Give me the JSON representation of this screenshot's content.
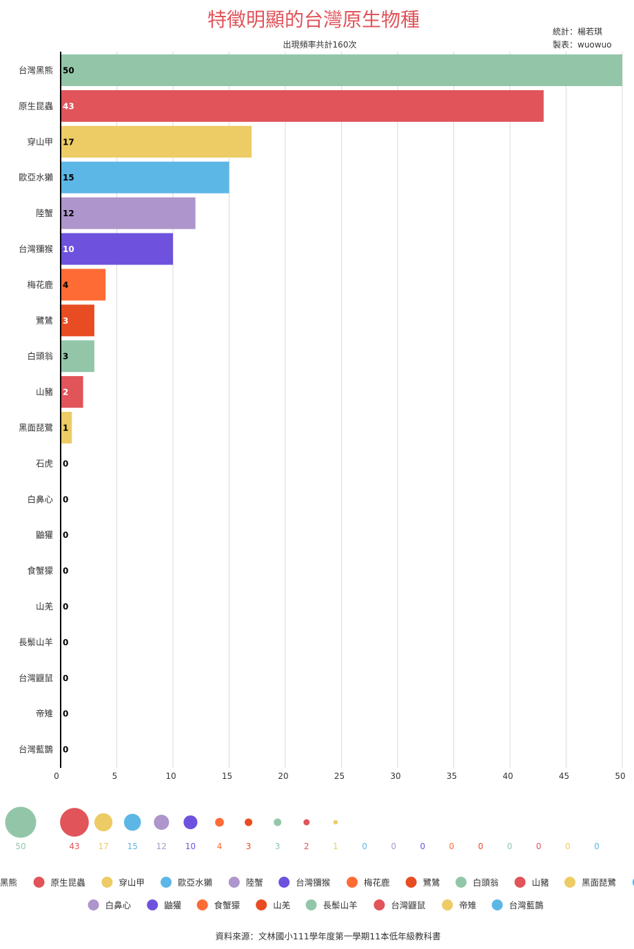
{
  "chart_data": {
    "type": "bar",
    "orientation": "horizontal",
    "title": "特徵明顯的台灣原生物種",
    "subtitle": "出現頻率共計160次",
    "credit_stats": "統計：楊若琪",
    "credit_maker": "製表：wuowuo",
    "source": "資料來源：文林國小111學年度第一學期11本低年級教科書",
    "categories": [
      "台灣黑熊",
      "原生昆蟲",
      "穿山甲",
      "歐亞水獺",
      "陸蟹",
      "台灣獼猴",
      "梅花鹿",
      "鷺鷥",
      "白頭翁",
      "山豬",
      "黑面琵鷺",
      "石虎",
      "白鼻心",
      "鼬獾",
      "食蟹獴",
      "山羌",
      "長鬃山羊",
      "台灣鼴鼠",
      "帝雉",
      "台灣藍鵲"
    ],
    "values": [
      50,
      43,
      17,
      15,
      12,
      10,
      4,
      3,
      3,
      2,
      1,
      0,
      0,
      0,
      0,
      0,
      0,
      0,
      0,
      0
    ],
    "colors": [
      "#93c6a9",
      "#e0545a",
      "#edcb65",
      "#5db7e6",
      "#ae95cb",
      "#6e52de",
      "#ff6b35",
      "#e84c22",
      "#93c6a9",
      "#e0545a",
      "#edcb65",
      "#5db7e6",
      "#ae95cb",
      "#6e52de",
      "#ff6b35",
      "#e84c22",
      "#93c6a9",
      "#e0545a",
      "#edcb65",
      "#5db7e6"
    ],
    "value_label_colors": [
      "#000000",
      "#ffffff",
      "#000000",
      "#000000",
      "#000000",
      "#ffffff",
      "#000000",
      "#ffffff",
      "#000000",
      "#ffffff",
      "#000000",
      "#000000",
      "#000000",
      "#000000",
      "#000000",
      "#000000",
      "#000000",
      "#000000",
      "#000000",
      "#000000"
    ],
    "xlim": [
      0,
      50
    ],
    "xticks": [
      0,
      5,
      10,
      15,
      20,
      25,
      30,
      35,
      40,
      45,
      50
    ],
    "grid": true,
    "legend": "bottom",
    "title_color": "#e0545a"
  }
}
